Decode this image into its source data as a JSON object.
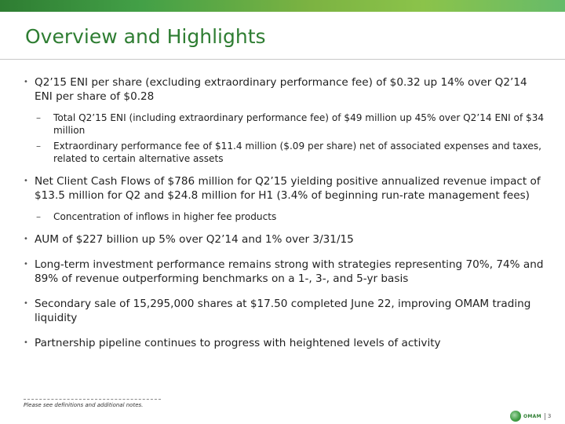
{
  "slide": {
    "title": "Overview and Highlights"
  },
  "bullets": [
    {
      "text": "Q2’15 ENI per share (excluding extraordinary performance fee) of $0.32 up 14% over Q2’14 ENI per share of $0.28",
      "subs": [
        "Total Q2’15 ENI (including extraordinary performance fee) of $49 million up 45% over Q2’14 ENI of $34 million",
        "Extraordinary performance fee of $11.4 million ($.09 per share) net of associated expenses and taxes, related to certain alternative assets"
      ]
    },
    {
      "text": "Net Client Cash Flows of $786 million for Q2’15 yielding positive annualized revenue impact of $13.5 million for Q2 and $24.8 million for H1 (3.4% of beginning run-rate management fees)",
      "subs": [
        "Concentration of inflows in higher fee products"
      ]
    },
    {
      "text": "AUM of $227 billion up 5% over Q2’14 and 1% over 3/31/15"
    },
    {
      "text": "Long-term investment performance remains strong with strategies representing 70%, 74% and 89% of revenue outperforming benchmarks on a 1-, 3-, and 5-yr basis"
    },
    {
      "text": "Secondary sale of 15,295,000 shares at $17.50 completed June 22, improving OMAM trading liquidity"
    },
    {
      "text": "Partnership pipeline continues to progress with heightened levels of activity"
    }
  ],
  "footer": {
    "note": "Please see definitions and additional notes.",
    "logo_text": "OMAM",
    "page_number": "3"
  },
  "colors": {
    "title": "#2e7d32",
    "bar_start": "#2e7d32",
    "bar_end": "#8bc34a"
  },
  "icons": {
    "logo": "omam-logo-icon",
    "bullet": "bullet-dot-icon",
    "sub_bullet": "dash-icon"
  }
}
